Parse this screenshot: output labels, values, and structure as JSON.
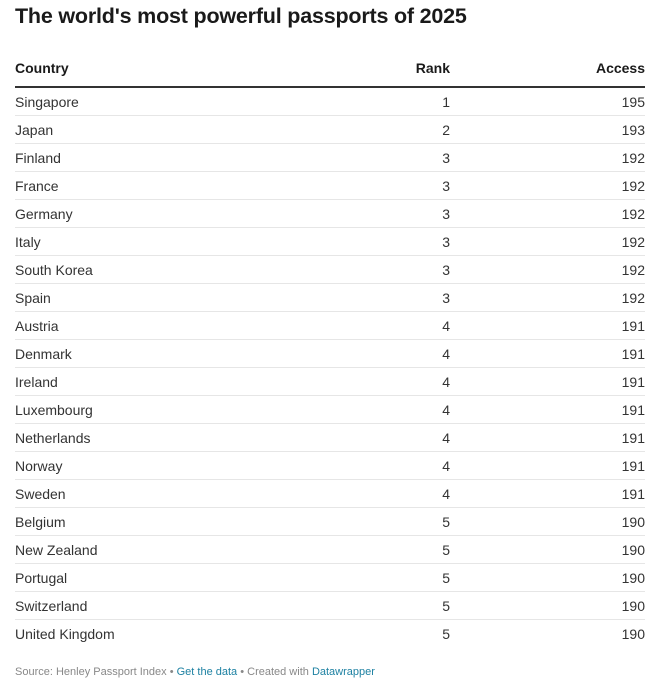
{
  "title": "The world's most powerful passports of 2025",
  "columns": {
    "country": "Country",
    "rank": "Rank",
    "access": "Access"
  },
  "footer": {
    "source": "Source: Henley Passport Index",
    "sep1": " • ",
    "get_data": "Get the data",
    "sep2": " • Created with ",
    "tool": "Datawrapper"
  },
  "chart_data": {
    "type": "table",
    "title": "The world's most powerful passports of 2025",
    "columns": [
      "Country",
      "Rank",
      "Access"
    ],
    "rows": [
      {
        "country": "Singapore",
        "rank": "1",
        "access": "195"
      },
      {
        "country": "Japan",
        "rank": "2",
        "access": "193"
      },
      {
        "country": "Finland",
        "rank": "3",
        "access": "192"
      },
      {
        "country": "France",
        "rank": "3",
        "access": "192"
      },
      {
        "country": "Germany",
        "rank": "3",
        "access": "192"
      },
      {
        "country": "Italy",
        "rank": "3",
        "access": "192"
      },
      {
        "country": "South Korea",
        "rank": "3",
        "access": "192"
      },
      {
        "country": "Spain",
        "rank": "3",
        "access": "192"
      },
      {
        "country": "Austria",
        "rank": "4",
        "access": "191"
      },
      {
        "country": "Denmark",
        "rank": "4",
        "access": "191"
      },
      {
        "country": "Ireland",
        "rank": "4",
        "access": "191"
      },
      {
        "country": "Luxembourg",
        "rank": "4",
        "access": "191"
      },
      {
        "country": "Netherlands",
        "rank": "4",
        "access": "191"
      },
      {
        "country": "Norway",
        "rank": "4",
        "access": "191"
      },
      {
        "country": "Sweden",
        "rank": "4",
        "access": "191"
      },
      {
        "country": "Belgium",
        "rank": "5",
        "access": "190"
      },
      {
        "country": "New Zealand",
        "rank": "5",
        "access": "190"
      },
      {
        "country": "Portugal",
        "rank": "5",
        "access": "190"
      },
      {
        "country": "Switzerland",
        "rank": "5",
        "access": "190"
      },
      {
        "country": "United Kingdom",
        "rank": "5",
        "access": "190"
      }
    ]
  }
}
